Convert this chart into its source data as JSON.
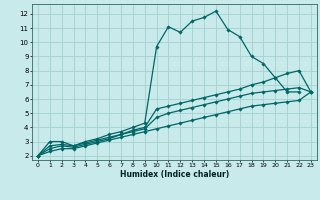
{
  "xlabel": "Humidex (Indice chaleur)",
  "bg_color": "#c8eaea",
  "grid_color": "#aad4d4",
  "line_color": "#006666",
  "xlim": [
    -0.5,
    23.5
  ],
  "ylim": [
    1.7,
    12.7
  ],
  "xticks": [
    0,
    1,
    2,
    3,
    4,
    5,
    6,
    7,
    8,
    9,
    10,
    11,
    12,
    13,
    14,
    15,
    16,
    17,
    18,
    19,
    20,
    21,
    22,
    23
  ],
  "yticks": [
    2,
    3,
    4,
    5,
    6,
    7,
    8,
    9,
    10,
    11,
    12
  ],
  "lines": [
    {
      "x": [
        0,
        1,
        2,
        3,
        4,
        5,
        6,
        7,
        8,
        9,
        10,
        11,
        12,
        13,
        14,
        15,
        16,
        17,
        18,
        19,
        20,
        21,
        22
      ],
      "y": [
        2.0,
        3.0,
        3.0,
        2.7,
        3.0,
        3.2,
        3.5,
        3.7,
        4.0,
        4.3,
        9.7,
        11.1,
        10.7,
        11.5,
        11.75,
        12.2,
        10.9,
        10.4,
        9.0,
        8.5,
        7.5,
        6.5,
        6.5
      ]
    },
    {
      "x": [
        0,
        1,
        2,
        3,
        4,
        5,
        6,
        7,
        8,
        9,
        10,
        11,
        12,
        13,
        14,
        15,
        16,
        17,
        18,
        19,
        20,
        21,
        22,
        23
      ],
      "y": [
        2.0,
        2.7,
        2.8,
        2.7,
        2.9,
        3.1,
        3.3,
        3.5,
        3.8,
        4.0,
        5.3,
        5.5,
        5.7,
        5.9,
        6.1,
        6.3,
        6.5,
        6.7,
        7.0,
        7.2,
        7.5,
        7.8,
        8.0,
        6.5
      ]
    },
    {
      "x": [
        0,
        1,
        2,
        3,
        4,
        5,
        6,
        7,
        8,
        9,
        10,
        11,
        12,
        13,
        14,
        15,
        16,
        17,
        18,
        19,
        20,
        21,
        22,
        23
      ],
      "y": [
        2.0,
        2.5,
        2.7,
        2.6,
        2.8,
        3.0,
        3.2,
        3.5,
        3.7,
        3.9,
        4.7,
        5.0,
        5.2,
        5.4,
        5.6,
        5.8,
        6.0,
        6.2,
        6.4,
        6.5,
        6.6,
        6.7,
        6.8,
        6.5
      ]
    },
    {
      "x": [
        0,
        1,
        2,
        3,
        4,
        5,
        6,
        7,
        8,
        9,
        10,
        11,
        12,
        13,
        14,
        15,
        16,
        17,
        18,
        19,
        20,
        21,
        22,
        23
      ],
      "y": [
        2.0,
        2.3,
        2.5,
        2.5,
        2.7,
        2.9,
        3.1,
        3.3,
        3.5,
        3.7,
        3.9,
        4.1,
        4.3,
        4.5,
        4.7,
        4.9,
        5.1,
        5.3,
        5.5,
        5.6,
        5.7,
        5.8,
        5.9,
        6.5
      ]
    }
  ]
}
